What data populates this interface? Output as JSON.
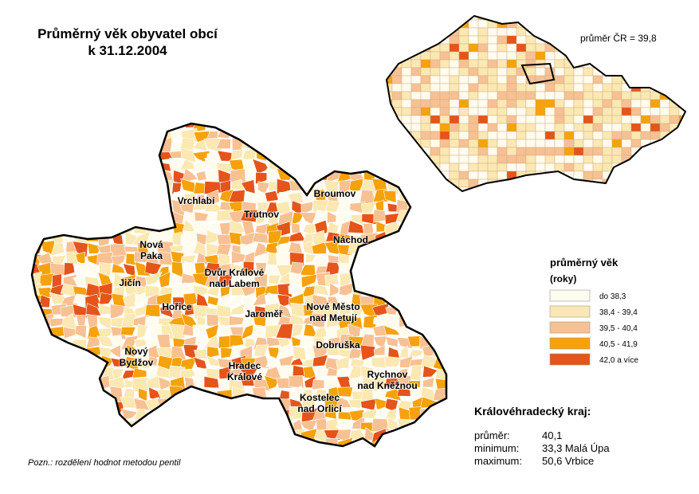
{
  "header": {
    "title_lines": [
      "Průměrný věk obyvatel obcí",
      "k 31.12.2004"
    ]
  },
  "inset": {
    "note": "průměr ČR = 39,8"
  },
  "districts": [
    {
      "lines": [
        "Vrchlabí"
      ]
    },
    {
      "lines": [
        "Trutnov"
      ]
    },
    {
      "lines": [
        "Broumov"
      ]
    },
    {
      "lines": [
        "Náchod"
      ]
    },
    {
      "lines": [
        "Nová",
        "Paka"
      ]
    },
    {
      "lines": [
        "Jičín"
      ]
    },
    {
      "lines": [
        "Dvůr Králové",
        "nad Labem"
      ]
    },
    {
      "lines": [
        "Hořice"
      ]
    },
    {
      "lines": [
        "Jaroměř"
      ]
    },
    {
      "lines": [
        "Nové Město",
        "nad Metují"
      ]
    },
    {
      "lines": [
        "Dobruška"
      ]
    },
    {
      "lines": [
        "Nový",
        "Bydžov"
      ]
    },
    {
      "lines": [
        "Hradec",
        "Králové"
      ]
    },
    {
      "lines": [
        "Rychnov",
        "nad Kněžnou"
      ]
    },
    {
      "lines": [
        "Kostelec",
        "nad Orlicí"
      ]
    }
  ],
  "legend": {
    "title": "průměrný věk",
    "subtitle": "(roky)",
    "items": [
      {
        "label": "do 38,3",
        "color": "#fffbee"
      },
      {
        "label": "38,4 - 39,4",
        "color": "#fbe8b2"
      },
      {
        "label": "39,5 - 40,4",
        "color": "#f8c193"
      },
      {
        "label": "40,5 - 41,9",
        "color": "#f6a20c"
      },
      {
        "label": "42,0 a více",
        "color": "#e5541a"
      }
    ]
  },
  "stats": {
    "title": "Královéhradecký kraj:",
    "rows": [
      [
        "průměr:",
        "40,1"
      ],
      [
        "minimum:",
        "33,3 Malá Úpa"
      ],
      [
        "maximum:",
        "50,6 Vrbice"
      ]
    ]
  },
  "footnote": "Pozn.: rozdělení hodnot metodou pentil"
}
